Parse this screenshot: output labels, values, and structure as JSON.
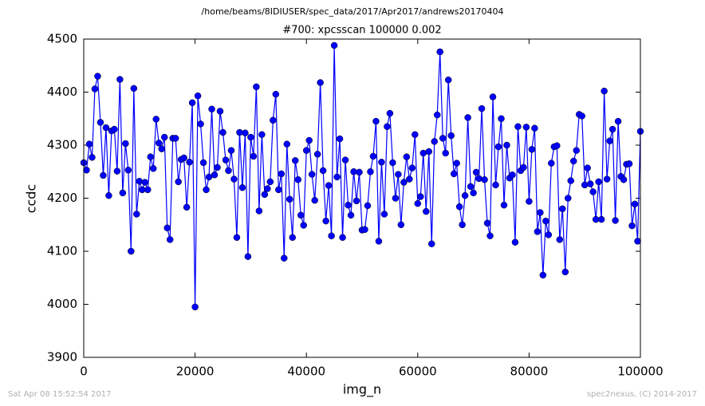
{
  "chart_data": {
    "type": "line",
    "path_title": "/home/beams/8IDIUSER/spec_data/2017/Apr2017/andrews20170404",
    "title": "#700: xpcsscan 100000 0.002",
    "xlabel": "img_n",
    "ylabel": "ccdc",
    "footer_left": "Sat Apr 08 15:52:54 2017",
    "footer_right": "spec2nexus, (C) 2014-2017",
    "xlim": [
      0,
      100000
    ],
    "ylim": [
      3900,
      4500
    ],
    "xticks": [
      0,
      20000,
      40000,
      60000,
      80000,
      100000
    ],
    "yticks": [
      3900,
      4000,
      4100,
      4200,
      4300,
      4400,
      4500
    ],
    "x": [
      0,
      500,
      1000,
      1500,
      2000,
      2500,
      3000,
      3500,
      4000,
      4500,
      5000,
      5500,
      6000,
      6500,
      7000,
      7500,
      8000,
      8500,
      9000,
      9500,
      10000,
      10500,
      11000,
      11500,
      12000,
      12500,
      13000,
      13500,
      14000,
      14500,
      15000,
      15500,
      16000,
      16500,
      17000,
      17500,
      18000,
      18500,
      19000,
      19500,
      20000,
      20500,
      21000,
      21500,
      22000,
      22500,
      23000,
      23500,
      24000,
      24500,
      25000,
      25500,
      26000,
      26500,
      27000,
      27500,
      28000,
      28500,
      29000,
      29500,
      30000,
      30500,
      31000,
      31500,
      32000,
      32500,
      33000,
      33500,
      34000,
      34500,
      35000,
      35500,
      36000,
      36500,
      37000,
      37500,
      38000,
      38500,
      39000,
      39500,
      40000,
      40500,
      41000,
      41500,
      42000,
      42500,
      43000,
      43500,
      44000,
      44500,
      45000,
      45500,
      46000,
      46500,
      47000,
      47500,
      48000,
      48500,
      49000,
      49500,
      50000,
      50500,
      51000,
      51500,
      52000,
      52500,
      53000,
      53500,
      54000,
      54500,
      55000,
      55500,
      56000,
      56500,
      57000,
      57500,
      58000,
      58500,
      59000,
      59500,
      60000,
      60500,
      61000,
      61500,
      62000,
      62500,
      63000,
      63500,
      64000,
      64500,
      65000,
      65500,
      66000,
      66500,
      67000,
      67500,
      68000,
      68500,
      69000,
      69500,
      70000,
      70500,
      71000,
      71500,
      72000,
      72500,
      73000,
      73500,
      74000,
      74500,
      75000,
      75500,
      76000,
      76500,
      77000,
      77500,
      78000,
      78500,
      79000,
      79500,
      80000,
      80500,
      81000,
      81500,
      82000,
      82500,
      83000,
      83500,
      84000,
      84500,
      85000,
      85500,
      86000,
      86500,
      87000,
      87500,
      88000,
      88500,
      89000,
      89500,
      90000,
      90500,
      91000,
      91500,
      92000,
      92500,
      93000,
      93500,
      94000,
      94500,
      95000,
      95500,
      96000,
      96500,
      97000,
      97500,
      98000,
      98500,
      99000,
      99500,
      100000
    ],
    "series": [
      {
        "name": "ccdc",
        "color": "#0000ff",
        "values": [
          4267,
          4253,
          4302,
          4277,
          4406,
          4430,
          4343,
          4243,
          4333,
          4205,
          4327,
          4330,
          4251,
          4424,
          4210,
          4303,
          4253,
          4100,
          4407,
          4170,
          4232,
          4216,
          4230,
          4216,
          4278,
          4256,
          4349,
          4304,
          4293,
          4315,
          4144,
          4122,
          4313,
          4313,
          4231,
          4273,
          4276,
          4183,
          4268,
          4380,
          3995,
          4393,
          4340,
          4267,
          4216,
          4240,
          4368,
          4244,
          4258,
          4364,
          4324,
          4272,
          4252,
          4290,
          4236,
          4126,
          4324,
          4220,
          4323,
          4090,
          4315,
          4279,
          4410,
          4176,
          4320,
          4207,
          4218,
          4231,
          4347,
          4396,
          4216,
          4246,
          4087,
          4302,
          4198,
          4126,
          4271,
          4235,
          4168,
          4149,
          4290,
          4309,
          4245,
          4196,
          4283,
          4418,
          4252,
          4157,
          4224,
          4129,
          4488,
          4240,
          4312,
          4126,
          4272,
          4187,
          4168,
          4250,
          4195,
          4249,
          4140,
          4141,
          4186,
          4250,
          4279,
          4345,
          4119,
          4268,
          4170,
          4335,
          4360,
          4267,
          4200,
          4245,
          4150,
          4230,
          4278,
          4236,
          4257,
          4320,
          4190,
          4203,
          4285,
          4175,
          4288,
          4114,
          4307,
          4357,
          4476,
          4313,
          4285,
          4423,
          4318,
          4246,
          4266,
          4184,
          4150,
          4205,
          4352,
          4222,
          4210,
          4249,
          4237,
          4369,
          4235,
          4153,
          4129,
          4391,
          4225,
          4297,
          4350,
          4187,
          4300,
          4238,
          4244,
          4117,
          4335,
          4252,
          4258,
          4334,
          4194,
          4292,
          4332,
          4137,
          4173,
          4055,
          4157,
          4131,
          4266,
          4297,
          4299,
          4122,
          4180,
          4061,
          4200,
          4233,
          4270,
          4290,
          4358,
          4355,
          4225,
          4257,
          4227,
          4212,
          4160,
          4231,
          4160,
          4402,
          4236,
          4308,
          4330,
          4158,
          4345,
          4241,
          4235,
          4264,
          4265,
          4148,
          4189,
          4119,
          4326
        ]
      }
    ]
  }
}
